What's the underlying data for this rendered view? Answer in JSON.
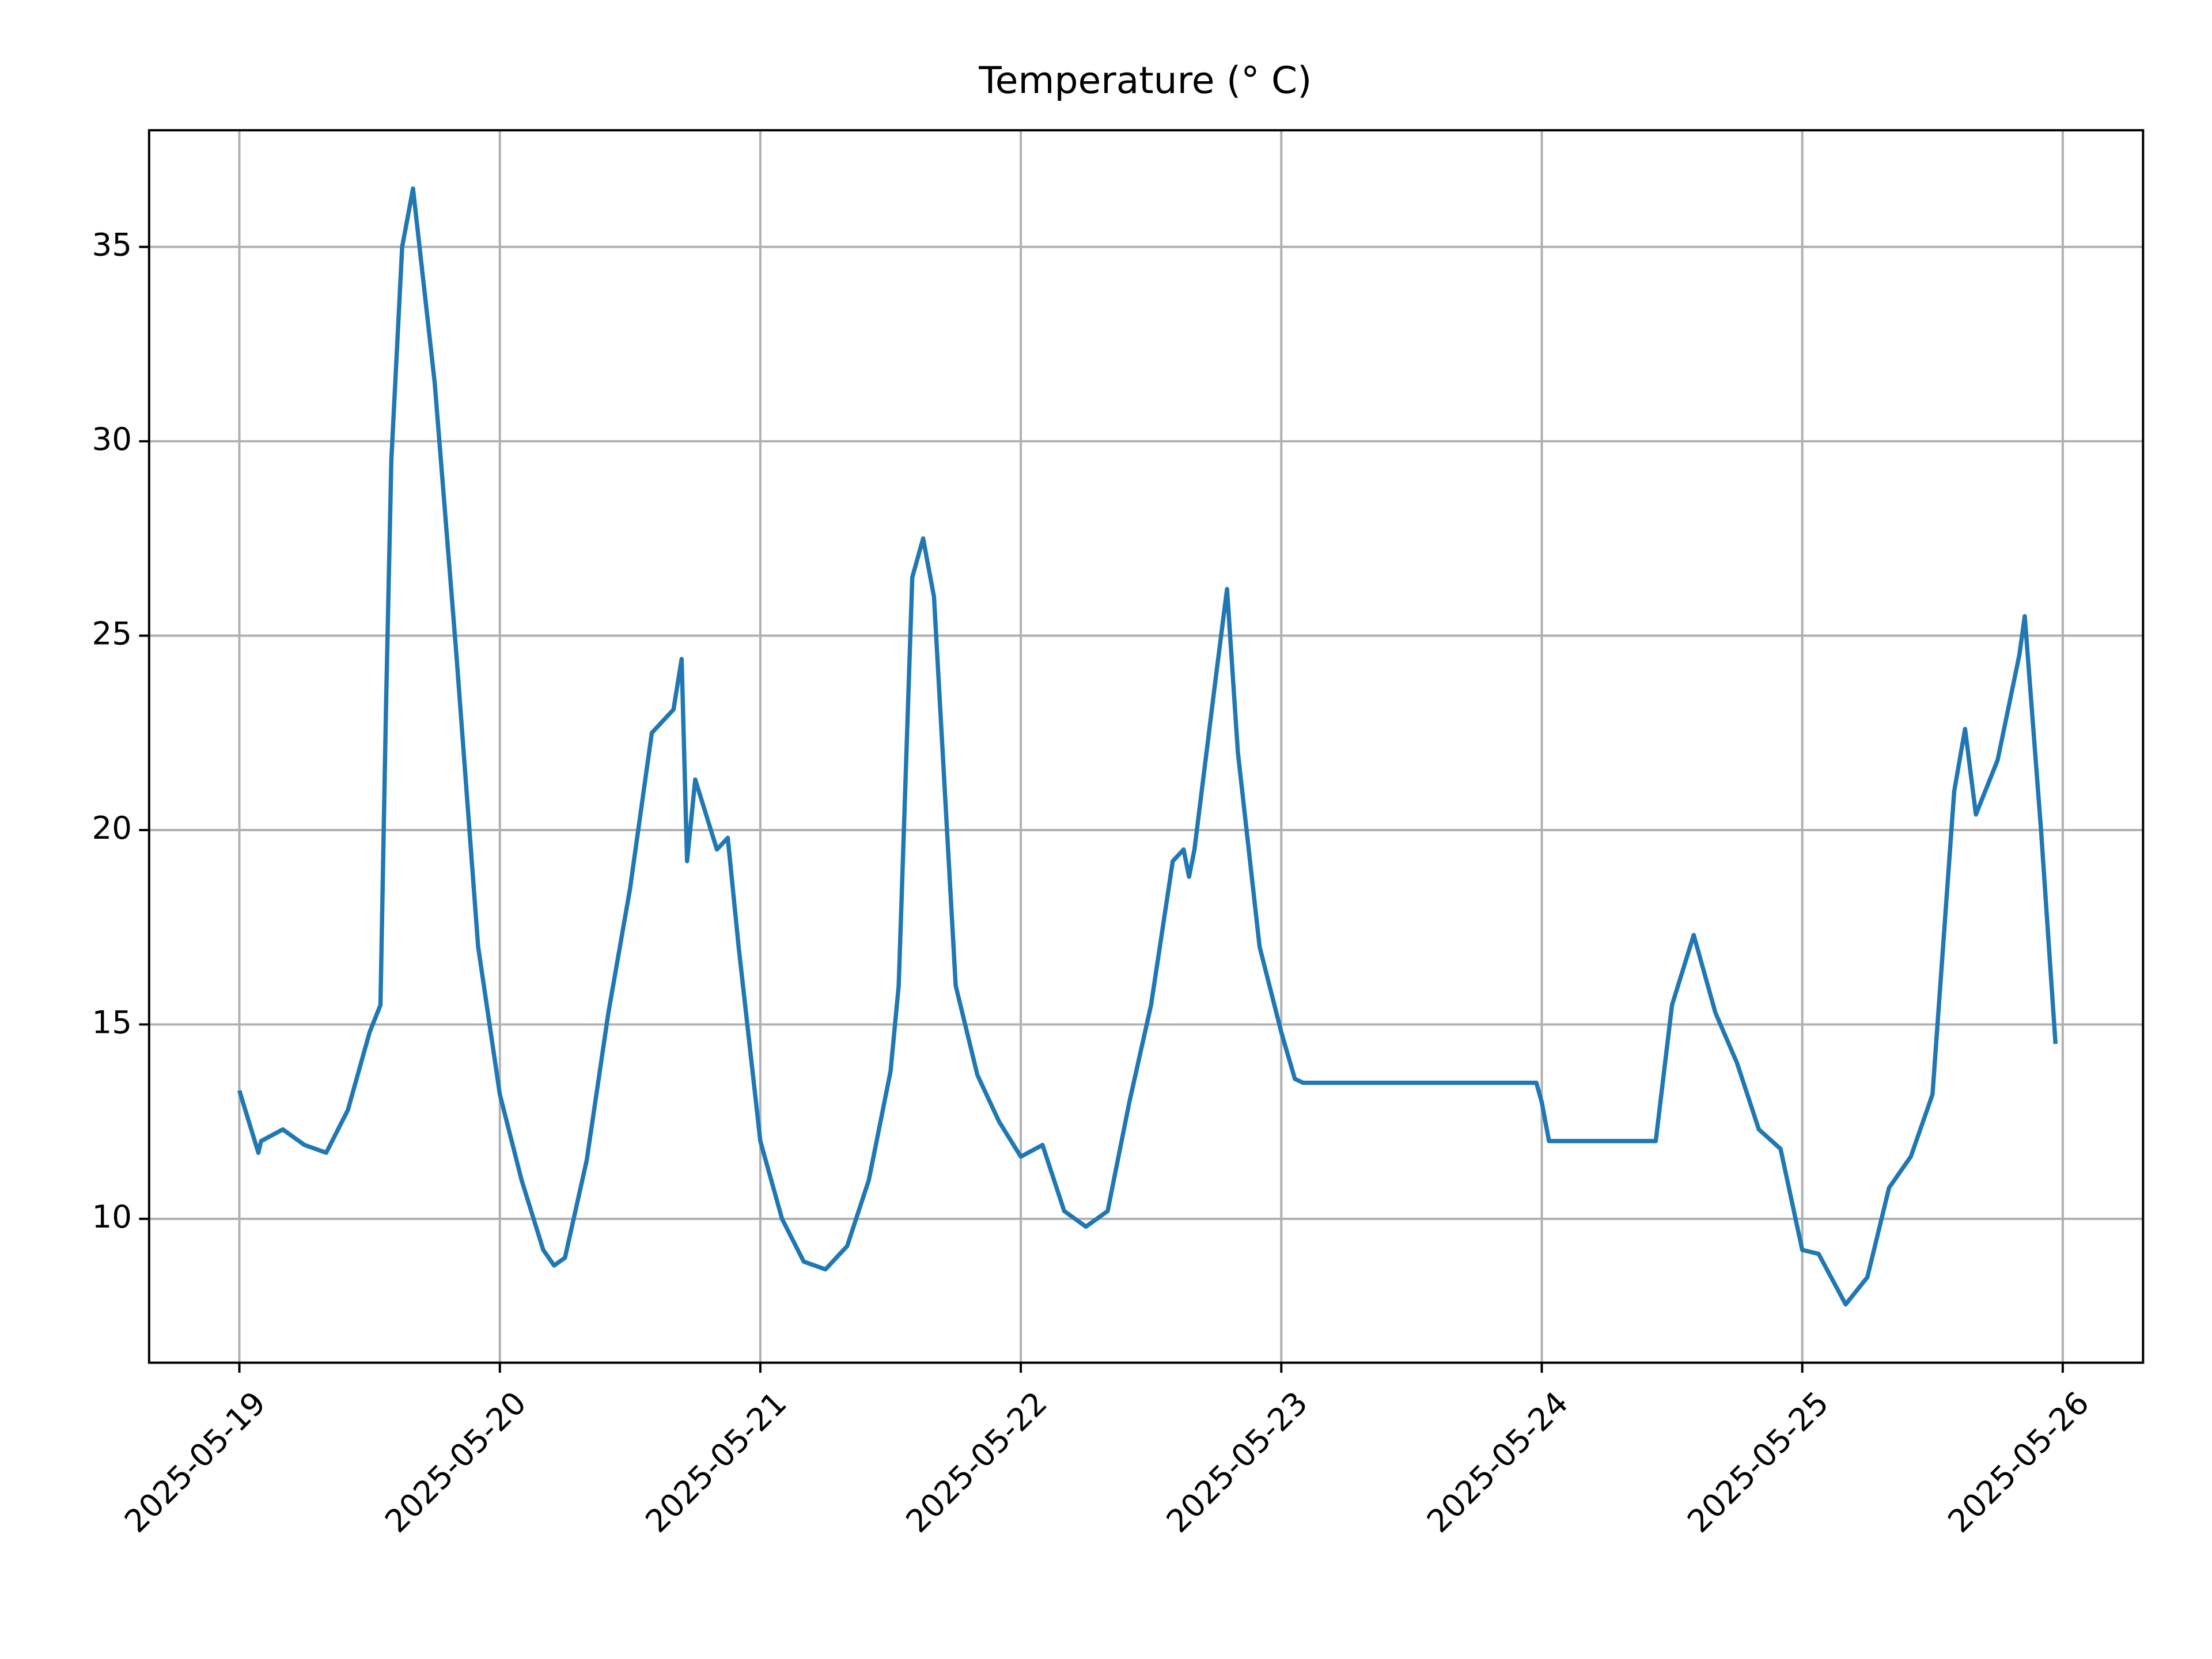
{
  "chart_data": {
    "type": "line",
    "title": "Temperature (° C)",
    "x": [
      "2025-05-19T00:00",
      "2025-05-19T01:45",
      "2025-05-19T02:00",
      "2025-05-19T04:00",
      "2025-05-19T06:00",
      "2025-05-19T08:00",
      "2025-05-19T10:00",
      "2025-05-19T12:00",
      "2025-05-19T13:00",
      "2025-05-19T13:30",
      "2025-05-19T14:00",
      "2025-05-19T15:00",
      "2025-05-19T16:00",
      "2025-05-19T18:00",
      "2025-05-19T20:00",
      "2025-05-19T22:00",
      "2025-05-20T00:00",
      "2025-05-20T02:00",
      "2025-05-20T04:00",
      "2025-05-20T05:00",
      "2025-05-20T06:00",
      "2025-05-20T08:00",
      "2025-05-20T10:00",
      "2025-05-20T12:00",
      "2025-05-20T14:00",
      "2025-05-20T16:00",
      "2025-05-20T16:45",
      "2025-05-20T17:15",
      "2025-05-20T18:00",
      "2025-05-20T20:00",
      "2025-05-20T21:00",
      "2025-05-20T22:00",
      "2025-05-21T00:00",
      "2025-05-21T02:00",
      "2025-05-21T04:00",
      "2025-05-21T06:00",
      "2025-05-21T08:00",
      "2025-05-21T10:00",
      "2025-05-21T12:00",
      "2025-05-21T12:45",
      "2025-05-21T14:00",
      "2025-05-21T15:00",
      "2025-05-21T16:00",
      "2025-05-21T18:00",
      "2025-05-21T20:00",
      "2025-05-21T22:00",
      "2025-05-22T00:00",
      "2025-05-22T02:00",
      "2025-05-22T04:00",
      "2025-05-22T06:00",
      "2025-05-22T08:00",
      "2025-05-22T10:00",
      "2025-05-22T12:00",
      "2025-05-22T14:00",
      "2025-05-22T15:00",
      "2025-05-22T15:30",
      "2025-05-22T16:00",
      "2025-05-22T18:00",
      "2025-05-22T19:00",
      "2025-05-22T20:00",
      "2025-05-22T22:00",
      "2025-05-23T00:00",
      "2025-05-23T01:15",
      "2025-05-23T02:00",
      "2025-05-23T23:30",
      "2025-05-24T00:00",
      "2025-05-24T00:40",
      "2025-05-24T10:30",
      "2025-05-24T12:00",
      "2025-05-24T14:00",
      "2025-05-24T16:00",
      "2025-05-24T18:00",
      "2025-05-24T20:00",
      "2025-05-24T22:00",
      "2025-05-25T00:00",
      "2025-05-25T01:30",
      "2025-05-25T04:00",
      "2025-05-25T06:00",
      "2025-05-25T08:00",
      "2025-05-25T10:00",
      "2025-05-25T12:00",
      "2025-05-25T14:00",
      "2025-05-25T15:00",
      "2025-05-25T16:00",
      "2025-05-25T18:00",
      "2025-05-25T20:00",
      "2025-05-25T20:30",
      "2025-05-25T22:00",
      "2025-05-25T23:20"
    ],
    "series": [
      {
        "name": "Temperature",
        "color": "#1f77b4",
        "values": [
          13.3,
          11.7,
          12.0,
          12.3,
          11.9,
          11.7,
          12.8,
          14.8,
          15.5,
          23,
          29.5,
          35,
          36.5,
          31.5,
          24.5,
          17,
          13.2,
          11.0,
          9.2,
          8.8,
          9.0,
          11.5,
          15.3,
          18.5,
          22.5,
          23.1,
          24.4,
          19.2,
          21.3,
          19.5,
          19.8,
          17,
          12.0,
          10.0,
          8.9,
          8.7,
          9.3,
          11.0,
          13.8,
          16,
          26.5,
          27.5,
          26,
          16,
          13.7,
          12.5,
          11.6,
          11.9,
          10.2,
          9.8,
          10.2,
          13.0,
          15.5,
          19.2,
          19.5,
          18.8,
          19.5,
          24,
          26.2,
          22,
          17,
          14.8,
          13.6,
          13.5,
          13.5,
          13.0,
          12.0,
          12.0,
          15.5,
          17.3,
          15.3,
          14.0,
          12.3,
          11.8,
          9.2,
          9.1,
          7.8,
          8.5,
          10.8,
          11.6,
          13.2,
          21.0,
          22.6,
          20.4,
          21.8,
          24.5,
          25.5,
          20,
          14.5
        ]
      }
    ],
    "xlim": [
      "2025-05-18T15:41",
      "2025-05-26T07:24"
    ],
    "xticks": [
      "2025-05-19",
      "2025-05-20",
      "2025-05-21",
      "2025-05-22",
      "2025-05-23",
      "2025-05-24",
      "2025-05-25",
      "2025-05-26"
    ],
    "ylim": [
      6.3,
      38.0
    ],
    "yticks": [
      10,
      15,
      20,
      25,
      30,
      35
    ],
    "grid": true
  }
}
